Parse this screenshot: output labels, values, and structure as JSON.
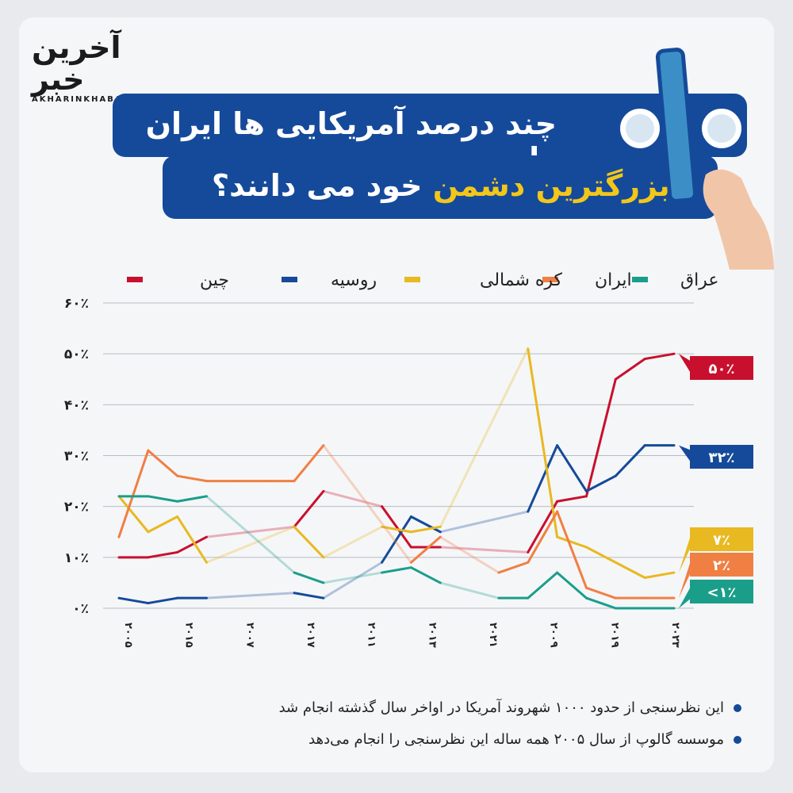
{
  "logo": {
    "fa": "آخرین خبر",
    "en": "AKHARINKHABAR"
  },
  "header": {
    "line1": "چند درصد آمریکایی ها ایران را",
    "line2_highlight": "بزرگترین دشمن",
    "line2_rest": "خود می دانند؟"
  },
  "notes": [
    "این نظرسنجی از حدود ۱۰۰۰ شهروند آمریکا در اواخر سال گذشته انجام شد",
    "موسسه گالوپ از سال ۲۰۰۵ همه ساله این نظرسنجی را انجام می‌دهد"
  ],
  "chart_data": {
    "type": "line",
    "ylim": [
      0,
      60
    ],
    "yticks": [
      0,
      10,
      20,
      30,
      40,
      50,
      60
    ],
    "ytick_labels": [
      "۰٪",
      "۱۰٪",
      "۲۰٪",
      "۳۰٪",
      "۴۰٪",
      "۵۰٪",
      "۶۰٪"
    ],
    "x_tick_labels": [
      "۲۰۰۵",
      "۲۰۱۵",
      "۲۰۰۷",
      "۲۰۱۷",
      "۲۰۱۱",
      "۲۰۱۳",
      "۲۰۲۱",
      "۲۰۰۹",
      "۲۰۱۹",
      "۲۰۲۳"
    ],
    "x_count": 20,
    "legend_placement": "top",
    "series": [
      {
        "name": "چین",
        "color": "#c8102e",
        "end_label": "۵۰٪",
        "values": [
          10,
          10,
          11,
          14,
          null,
          null,
          16,
          23,
          null,
          20,
          12,
          12,
          null,
          null,
          11,
          21,
          22,
          45,
          49,
          50
        ]
      },
      {
        "name": "روسیه",
        "color": "#154a9a",
        "end_label": "۳۲٪",
        "values": [
          2,
          1,
          2,
          2,
          null,
          null,
          3,
          2,
          null,
          9,
          18,
          15,
          null,
          null,
          19,
          32,
          23,
          26,
          32,
          32
        ]
      },
      {
        "name": "کره شمالی",
        "color": "#e8b920",
        "end_label": "۷٪",
        "values": [
          22,
          15,
          18,
          9,
          null,
          null,
          16,
          10,
          null,
          16,
          15,
          16,
          null,
          null,
          51,
          14,
          12,
          9,
          6,
          7
        ]
      },
      {
        "name": "ایران",
        "color": "#f07f43",
        "end_label": "۲٪",
        "values": [
          14,
          31,
          26,
          25,
          25,
          25,
          25,
          32,
          null,
          null,
          9,
          14,
          null,
          7,
          9,
          19,
          4,
          2,
          2,
          2
        ]
      },
      {
        "name": "عراق",
        "color": "#1a9e8a",
        "end_label": "<۱٪",
        "values": [
          22,
          22,
          21,
          22,
          null,
          null,
          7,
          5,
          null,
          7,
          8,
          5,
          null,
          2,
          2,
          7,
          2,
          0,
          0,
          0
        ]
      }
    ]
  }
}
